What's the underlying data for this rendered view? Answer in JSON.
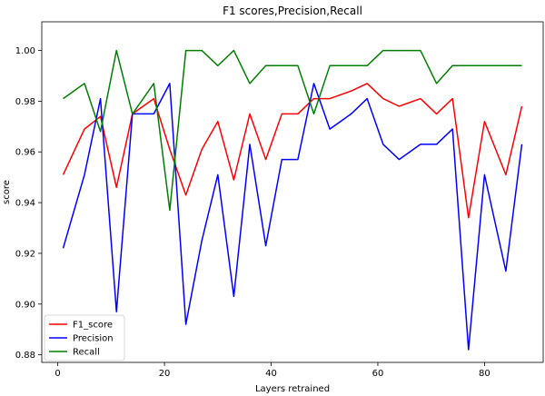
{
  "chart_data": {
    "type": "line",
    "title": "F1 scores,Precision,Recall",
    "xlabel": "Layers retrained",
    "ylabel": "score",
    "xlim": [
      -3,
      91
    ],
    "ylim": [
      0.877,
      1.0113
    ],
    "xticks": [
      0,
      20,
      40,
      60,
      80
    ],
    "yticks": [
      0.88,
      0.9,
      0.92,
      0.94,
      0.96,
      0.98,
      1.0
    ],
    "ytick_labels": [
      "0.88",
      "0.90",
      "0.92",
      "0.94",
      "0.96",
      "0.98",
      "1.00"
    ],
    "grid": false,
    "legend": "lower-left",
    "x": [
      1,
      5,
      8,
      11,
      14,
      18,
      21,
      24,
      27,
      30,
      33,
      36,
      39,
      42,
      45,
      48,
      51,
      55,
      58,
      61,
      64,
      68,
      71,
      74,
      77,
      80,
      84,
      87
    ],
    "series": [
      {
        "name": "F1_score",
        "color": "#ff0000",
        "values": [
          0.951,
          0.969,
          0.974,
          0.946,
          0.975,
          0.981,
          0.961,
          0.943,
          0.961,
          0.972,
          0.949,
          0.975,
          0.957,
          0.975,
          0.975,
          0.981,
          0.981,
          0.984,
          0.987,
          0.981,
          0.978,
          0.981,
          0.975,
          0.981,
          0.934,
          0.972,
          0.951,
          0.978
        ]
      },
      {
        "name": "Precision",
        "color": "#0000ff",
        "values": [
          0.922,
          0.951,
          0.981,
          0.897,
          0.975,
          0.975,
          0.987,
          0.892,
          0.925,
          0.951,
          0.903,
          0.963,
          0.923,
          0.957,
          0.957,
          0.987,
          0.969,
          0.975,
          0.981,
          0.963,
          0.957,
          0.963,
          0.963,
          0.969,
          0.882,
          0.951,
          0.913,
          0.963
        ]
      },
      {
        "name": "Recall",
        "color": "#008000",
        "values": [
          0.981,
          0.987,
          0.968,
          1.0,
          0.975,
          0.987,
          0.937,
          1.0,
          1.0,
          0.994,
          1.0,
          0.987,
          0.994,
          0.994,
          0.994,
          0.975,
          0.994,
          0.994,
          0.994,
          1.0,
          1.0,
          1.0,
          0.987,
          0.994,
          0.994,
          0.994,
          0.994,
          0.994
        ]
      }
    ]
  }
}
